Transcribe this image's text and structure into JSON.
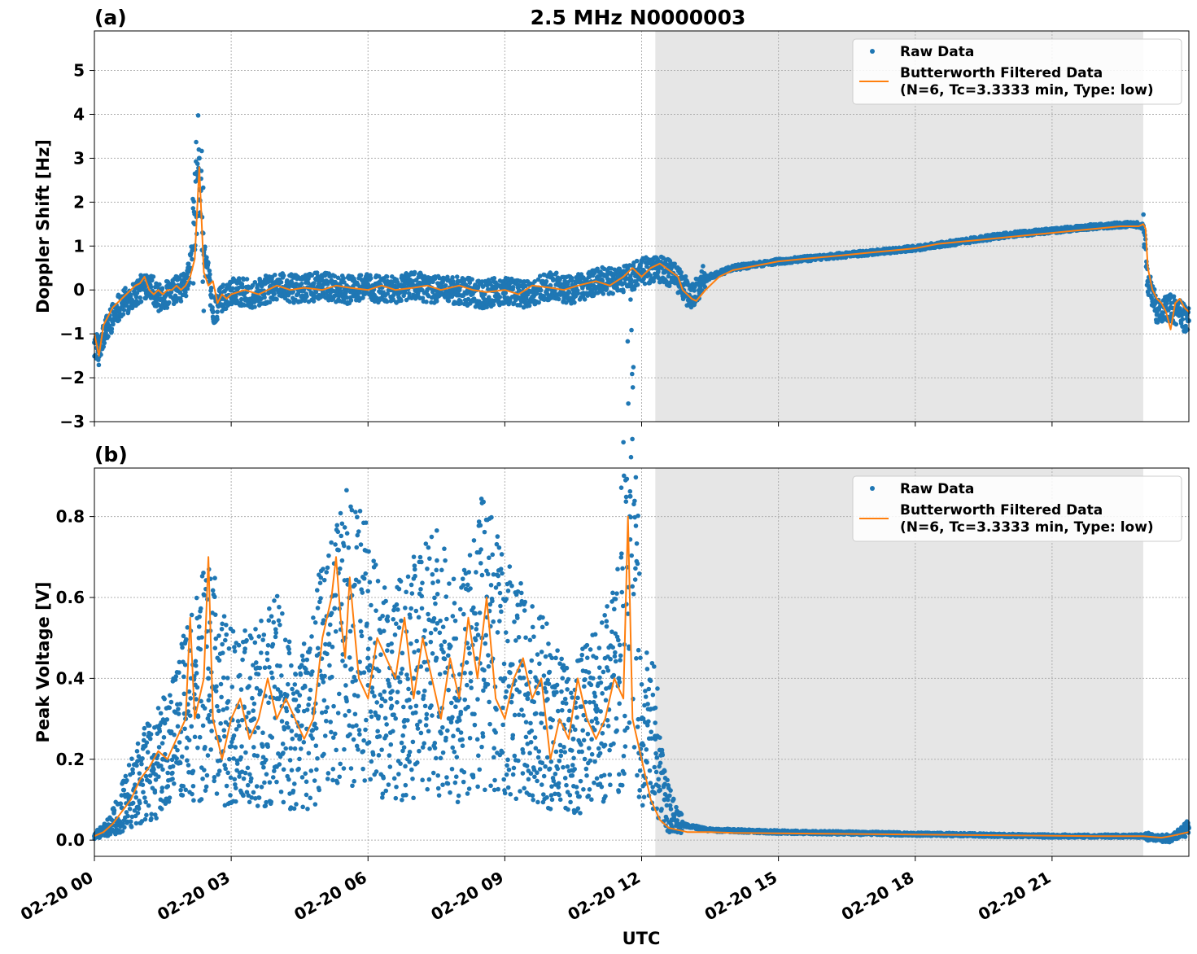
{
  "chart_data": [
    {
      "id": "a",
      "type": "scatter",
      "title": "2.5 MHz N0000003",
      "panel_label": "(a)",
      "ylabel": "Doppler Shift [Hz]",
      "xlabel": "",
      "xlim": [
        0,
        24
      ],
      "ylim": [
        -3,
        5.9
      ],
      "yticks": [
        -3,
        -2,
        -1,
        0,
        1,
        2,
        3,
        4,
        5
      ],
      "ytick_labels": [
        "−3",
        "−2",
        "−1",
        "0",
        "1",
        "2",
        "3",
        "4",
        "5"
      ],
      "shaded_interval": [
        12.3,
        23.0
      ],
      "grid": true,
      "legend": {
        "position": "top-right",
        "entries": [
          "Raw Data",
          "Butterworth Filtered Data",
          "(N=6, Tc=3.3333 min, Type: low)"
        ]
      },
      "series": [
        {
          "name": "Raw Data",
          "kind": "scatter",
          "color": "#1f77b4",
          "x": [
            0.0,
            0.1,
            0.25,
            0.5,
            0.75,
            1.0,
            1.2,
            1.4,
            1.6,
            1.8,
            2.0,
            2.1,
            2.2,
            2.3,
            2.4,
            2.5,
            2.6,
            2.8,
            3.0,
            3.5,
            4.0,
            4.5,
            5.0,
            5.5,
            6.0,
            6.5,
            7.0,
            7.5,
            8.0,
            8.5,
            9.0,
            9.5,
            10.0,
            10.5,
            11.0,
            11.5,
            12.0,
            12.3,
            12.6,
            12.9,
            13.1,
            13.3,
            13.5,
            14.0,
            15.0,
            16.0,
            17.0,
            18.0,
            19.0,
            20.0,
            21.0,
            22.0,
            22.8,
            23.0,
            23.1,
            23.3,
            23.6,
            24.0
          ],
          "y": [
            -1.2,
            -1.4,
            -0.9,
            -0.4,
            -0.2,
            0.0,
            0.2,
            -0.2,
            -0.1,
            0.0,
            0.1,
            0.5,
            1.5,
            3.0,
            0.8,
            0.3,
            -0.5,
            -0.2,
            0.0,
            -0.1,
            0.1,
            0.0,
            0.1,
            0.0,
            0.05,
            0.0,
            0.1,
            0.0,
            0.0,
            -0.1,
            0.0,
            -0.1,
            0.1,
            0.0,
            0.2,
            0.2,
            0.4,
            0.5,
            0.4,
            0.1,
            -0.2,
            0.2,
            0.3,
            0.5,
            0.65,
            0.75,
            0.85,
            0.95,
            1.1,
            1.25,
            1.35,
            1.45,
            1.5,
            1.45,
            0.2,
            -0.5,
            -0.4,
            -0.7
          ]
        },
        {
          "name": "Butterworth Filtered Data",
          "kind": "line",
          "color": "#ff7f0e",
          "x": [
            0.0,
            0.1,
            0.2,
            0.3,
            0.4,
            0.5,
            0.6,
            0.7,
            0.8,
            0.9,
            1.0,
            1.1,
            1.2,
            1.3,
            1.4,
            1.5,
            1.6,
            1.7,
            1.8,
            1.9,
            2.0,
            2.1,
            2.2,
            2.3,
            2.4,
            2.5,
            2.6,
            2.7,
            2.8,
            2.9,
            3.0,
            3.3,
            3.6,
            4.0,
            4.3,
            4.6,
            5.0,
            5.3,
            5.6,
            6.0,
            6.3,
            6.6,
            7.0,
            7.3,
            7.6,
            8.0,
            8.3,
            8.6,
            9.0,
            9.3,
            9.6,
            10.0,
            10.3,
            10.6,
            11.0,
            11.3,
            11.6,
            11.8,
            12.0,
            12.2,
            12.4,
            12.6,
            12.8,
            12.9,
            13.0,
            13.1,
            13.2,
            13.4,
            13.7,
            14.0,
            14.5,
            15.0,
            15.5,
            16.0,
            16.5,
            17.0,
            17.5,
            18.0,
            18.5,
            19.0,
            19.5,
            20.0,
            20.5,
            21.0,
            21.5,
            22.0,
            22.5,
            22.9,
            23.0,
            23.05,
            23.1,
            23.2,
            23.3,
            23.4,
            23.5,
            23.6,
            23.7,
            23.8,
            23.9,
            24.0
          ],
          "y": [
            -1.0,
            -1.5,
            -0.8,
            -0.6,
            -0.4,
            -0.3,
            -0.2,
            -0.1,
            0.0,
            0.1,
            0.15,
            0.3,
            0.0,
            -0.1,
            0.0,
            -0.1,
            0.0,
            0.0,
            0.1,
            0.0,
            0.1,
            0.3,
            0.7,
            2.8,
            0.4,
            0.1,
            0.2,
            -0.3,
            -0.1,
            -0.2,
            -0.1,
            0.0,
            -0.1,
            0.1,
            0.0,
            0.05,
            0.0,
            0.1,
            0.05,
            0.0,
            0.1,
            0.0,
            0.05,
            0.1,
            0.0,
            0.1,
            0.0,
            -0.05,
            0.0,
            -0.1,
            0.1,
            0.05,
            0.0,
            0.1,
            0.2,
            0.1,
            0.3,
            0.5,
            0.3,
            0.5,
            0.6,
            0.45,
            0.3,
            0.0,
            -0.1,
            -0.2,
            -0.25,
            0.0,
            0.3,
            0.45,
            0.55,
            0.65,
            0.7,
            0.75,
            0.8,
            0.85,
            0.9,
            0.95,
            1.05,
            1.1,
            1.15,
            1.2,
            1.25,
            1.3,
            1.35,
            1.4,
            1.45,
            1.45,
            1.5,
            1.4,
            0.5,
            0.0,
            -0.2,
            -0.3,
            -0.5,
            -0.9,
            -0.3,
            -0.2,
            -0.4,
            -0.5
          ]
        }
      ]
    },
    {
      "id": "b",
      "type": "scatter",
      "title": "",
      "panel_label": "(b)",
      "ylabel": "Peak Voltage [V]",
      "xlabel": "UTC",
      "xlim": [
        0,
        24
      ],
      "ylim": [
        -0.04,
        0.92
      ],
      "yticks": [
        0.0,
        0.2,
        0.4,
        0.6,
        0.8
      ],
      "ytick_labels": [
        "0.0",
        "0.2",
        "0.4",
        "0.6",
        "0.8"
      ],
      "xticks": [
        0,
        3,
        6,
        9,
        12,
        15,
        18,
        21
      ],
      "xtick_labels": [
        "02-20 00",
        "02-20 03",
        "02-20 06",
        "02-20 09",
        "02-20 12",
        "02-20 15",
        "02-20 18",
        "02-20 21"
      ],
      "shaded_interval": [
        12.3,
        23.0
      ],
      "grid": true,
      "legend": {
        "position": "top-right",
        "entries": [
          "Raw Data",
          "Butterworth Filtered Data",
          "(N=6, Tc=3.3333 min, Type: low)"
        ]
      },
      "series": [
        {
          "name": "Raw Data",
          "kind": "scatter",
          "color": "#1f77b4",
          "x": [
            0.0,
            0.3,
            0.6,
            1.0,
            1.5,
            2.0,
            2.5,
            3.0,
            3.5,
            4.0,
            4.5,
            5.0,
            5.5,
            6.0,
            6.5,
            7.0,
            7.5,
            8.0,
            8.5,
            9.0,
            9.5,
            10.0,
            10.5,
            11.0,
            11.5,
            11.75,
            12.0,
            12.3,
            12.5,
            12.8,
            13.5,
            15.0,
            18.0,
            21.0,
            23.0,
            23.3,
            23.6,
            24.0
          ],
          "y": [
            0.01,
            0.03,
            0.08,
            0.15,
            0.2,
            0.3,
            0.4,
            0.3,
            0.3,
            0.35,
            0.25,
            0.4,
            0.5,
            0.45,
            0.35,
            0.4,
            0.45,
            0.35,
            0.5,
            0.4,
            0.35,
            0.3,
            0.25,
            0.3,
            0.4,
            0.85,
            0.3,
            0.25,
            0.1,
            0.04,
            0.025,
            0.02,
            0.015,
            0.01,
            0.01,
            0.005,
            0.005,
            0.03
          ]
        },
        {
          "name": "Butterworth Filtered Data",
          "kind": "line",
          "color": "#ff7f0e",
          "x": [
            0.0,
            0.2,
            0.4,
            0.6,
            0.8,
            1.0,
            1.2,
            1.4,
            1.6,
            1.8,
            2.0,
            2.1,
            2.2,
            2.3,
            2.4,
            2.5,
            2.6,
            2.7,
            2.8,
            3.0,
            3.2,
            3.4,
            3.6,
            3.8,
            4.0,
            4.2,
            4.4,
            4.6,
            4.8,
            5.0,
            5.2,
            5.3,
            5.4,
            5.5,
            5.6,
            5.8,
            6.0,
            6.2,
            6.4,
            6.6,
            6.8,
            7.0,
            7.2,
            7.4,
            7.6,
            7.8,
            8.0,
            8.2,
            8.4,
            8.6,
            8.8,
            9.0,
            9.2,
            9.4,
            9.6,
            9.8,
            10.0,
            10.2,
            10.4,
            10.6,
            10.8,
            11.0,
            11.2,
            11.4,
            11.6,
            11.7,
            11.8,
            11.9,
            12.0,
            12.2,
            12.4,
            12.6,
            12.8,
            13.0,
            13.5,
            14.0,
            16.0,
            18.0,
            20.0,
            22.0,
            23.0,
            23.2,
            23.4,
            23.6,
            23.8,
            24.0
          ],
          "y": [
            0.01,
            0.02,
            0.04,
            0.07,
            0.1,
            0.15,
            0.18,
            0.22,
            0.2,
            0.25,
            0.3,
            0.55,
            0.3,
            0.35,
            0.4,
            0.7,
            0.3,
            0.25,
            0.2,
            0.3,
            0.35,
            0.25,
            0.3,
            0.4,
            0.3,
            0.35,
            0.3,
            0.25,
            0.3,
            0.5,
            0.6,
            0.7,
            0.55,
            0.45,
            0.65,
            0.4,
            0.35,
            0.5,
            0.45,
            0.4,
            0.55,
            0.35,
            0.5,
            0.4,
            0.3,
            0.45,
            0.35,
            0.55,
            0.4,
            0.6,
            0.35,
            0.3,
            0.4,
            0.45,
            0.35,
            0.4,
            0.2,
            0.3,
            0.25,
            0.4,
            0.3,
            0.25,
            0.3,
            0.4,
            0.35,
            0.8,
            0.3,
            0.25,
            0.2,
            0.1,
            0.05,
            0.03,
            0.025,
            0.02,
            0.02,
            0.018,
            0.016,
            0.014,
            0.012,
            0.01,
            0.01,
            0.008,
            0.006,
            0.01,
            0.015,
            0.02
          ]
        }
      ]
    }
  ]
}
